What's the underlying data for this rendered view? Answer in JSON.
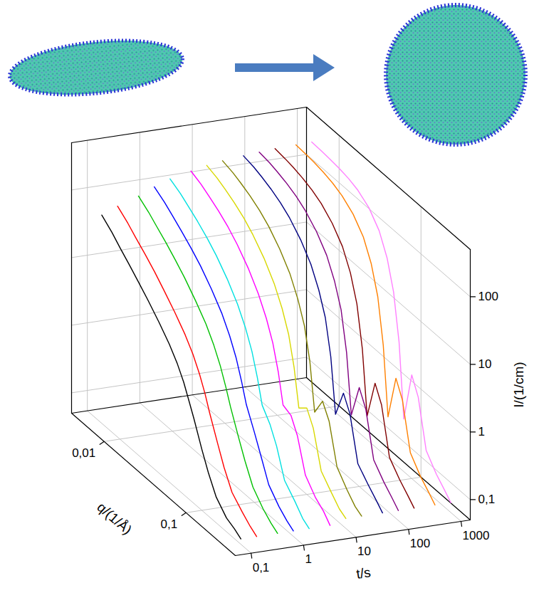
{
  "chart_data": {
    "type": "waterfall",
    "log": true,
    "grid": true,
    "xlabel": "q/(1/Å)",
    "ylabel": "I/(1/cm)",
    "zlabel": "t/s",
    "xlim": [
      0.004,
      0.4
    ],
    "xticks": [
      {
        "value": 0.01,
        "label": "0,01"
      },
      {
        "value": 0.1,
        "label": "0,1"
      }
    ],
    "ylim": [
      0.05,
      500
    ],
    "yticks": [
      {
        "value": 0.1,
        "label": "0,1"
      },
      1,
      10,
      100
    ],
    "zlim": [
      0.05,
      1500
    ],
    "zticks": [
      {
        "value": 0.1,
        "label": "0,1"
      },
      1,
      10,
      100,
      1000
    ],
    "x": [
      0.006,
      0.008,
      0.01,
      0.013,
      0.017,
      0.022,
      0.03,
      0.04,
      0.05,
      0.06,
      0.07,
      0.08,
      0.1,
      0.12,
      0.15,
      0.2,
      0.25,
      0.3
    ],
    "series": [
      {
        "z": 0.1,
        "color": "#000000",
        "values": [
          60,
          45,
          34,
          25,
          18,
          13,
          8.5,
          5.5,
          3.6,
          2.3,
          1.4,
          0.9,
          0.4,
          0.22,
          0.12,
          0.08,
          0.07,
          0.06
        ]
      },
      {
        "z": 0.2,
        "color": "#ff0000",
        "values": [
          75,
          57,
          44,
          33,
          24,
          17,
          11,
          7,
          4.5,
          2.8,
          1.7,
          1.0,
          0.45,
          0.24,
          0.13,
          0.09,
          0.07,
          0.06
        ]
      },
      {
        "z": 0.5,
        "color": "#00c000",
        "values": [
          95,
          74,
          58,
          44,
          32,
          23,
          14.5,
          9,
          5.5,
          3.3,
          1.9,
          1.1,
          0.5,
          0.27,
          0.14,
          0.09,
          0.07,
          0.06
        ]
      },
      {
        "z": 1,
        "color": "#0000ff",
        "values": [
          120,
          96,
          77,
          59,
          44,
          32,
          20,
          12,
          7,
          4,
          2.1,
          1.1,
          0.55,
          0.3,
          0.14,
          0.09,
          0.07,
          0.06
        ]
      },
      {
        "z": 2,
        "color": "#00e0e0",
        "values": [
          145,
          120,
          98,
          77,
          58,
          42,
          26,
          15,
          8.5,
          4.6,
          2.2,
          1.0,
          0.65,
          0.38,
          0.15,
          0.1,
          0.07,
          0.06
        ]
      },
      {
        "z": 5,
        "color": "#ff00ff",
        "values": [
          170,
          146,
          123,
          99,
          76,
          55,
          34,
          19,
          10.5,
          5.5,
          2.4,
          0.9,
          0.8,
          0.48,
          0.16,
          0.1,
          0.08,
          0.06
        ]
      },
      {
        "z": 10,
        "color": "#d8d800",
        "values": [
          190,
          168,
          146,
          121,
          95,
          70,
          44,
          25,
          13.5,
          6.8,
          2.6,
          0.75,
          0.95,
          0.58,
          0.17,
          0.11,
          0.08,
          0.07
        ]
      },
      {
        "z": 20,
        "color": "#808000",
        "values": [
          205,
          186,
          165,
          140,
          113,
          86,
          55,
          32,
          17,
          8.4,
          2.9,
          0.6,
          1.1,
          0.68,
          0.18,
          0.11,
          0.08,
          0.07
        ]
      },
      {
        "z": 50,
        "color": "#000080",
        "values": [
          218,
          202,
          183,
          159,
          132,
          103,
          68,
          40,
          21,
          10,
          3.1,
          0.5,
          1.3,
          0.78,
          0.18,
          0.12,
          0.09,
          0.07
        ]
      },
      {
        "z": 100,
        "color": "#800080",
        "values": [
          228,
          215,
          199,
          177,
          151,
          121,
          83,
          50,
          26,
          12,
          3.3,
          0.45,
          1.45,
          0.85,
          0.19,
          0.12,
          0.09,
          0.07
        ]
      },
      {
        "z": 200,
        "color": "#800000",
        "values": [
          236,
          226,
          214,
          196,
          172,
          143,
          101,
          62,
          32,
          13.5,
          3.4,
          0.4,
          1.55,
          0.9,
          0.19,
          0.12,
          0.09,
          0.07
        ]
      },
      {
        "z": 500,
        "color": "#ff8000",
        "values": [
          241,
          235,
          228,
          214,
          194,
          167,
          124,
          77,
          39,
          15.5,
          3.5,
          0.35,
          1.65,
          0.95,
          0.2,
          0.12,
          0.09,
          0.07
        ]
      },
      {
        "z": 1000,
        "color": "#ff80ff",
        "values": [
          245,
          240,
          235,
          226,
          210,
          186,
          142,
          88,
          44,
          16.8,
          3.6,
          0.3,
          1.7,
          0.97,
          0.2,
          0.12,
          0.09,
          0.07
        ]
      }
    ]
  }
}
